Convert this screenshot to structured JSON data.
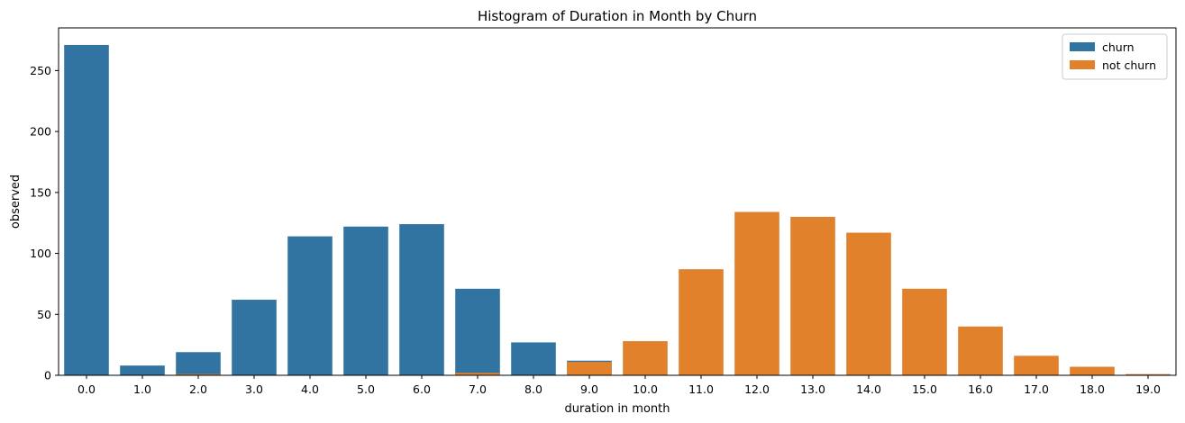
{
  "chart_data": {
    "type": "bar",
    "title": "Histogram of Duration in Month by Churn",
    "xlabel": "duration in month",
    "ylabel": "observed",
    "categories": [
      "0.0",
      "1.0",
      "2.0",
      "3.0",
      "4.0",
      "5.0",
      "6.0",
      "7.0",
      "8.0",
      "9.0",
      "10.0",
      "11.0",
      "12.0",
      "13.0",
      "14.0",
      "15.0",
      "16.0",
      "17.0",
      "18.0",
      "19.0"
    ],
    "series": [
      {
        "name": "churn",
        "color": "#3274a1",
        "values": [
          271,
          8,
          19,
          62,
          114,
          122,
          124,
          71,
          27,
          12,
          0,
          0,
          0,
          0,
          0,
          0,
          0,
          0,
          0,
          0
        ]
      },
      {
        "name": "not churn",
        "color": "#e1812c",
        "values": [
          0,
          0,
          1,
          0,
          0,
          0,
          0,
          2,
          0,
          11,
          28,
          87,
          134,
          130,
          117,
          71,
          40,
          16,
          7,
          1
        ]
      }
    ],
    "ylim": [
      0,
      285
    ],
    "yticks": [
      0,
      50,
      100,
      150,
      200,
      250
    ],
    "legend_position": "top-right",
    "grid": false
  }
}
